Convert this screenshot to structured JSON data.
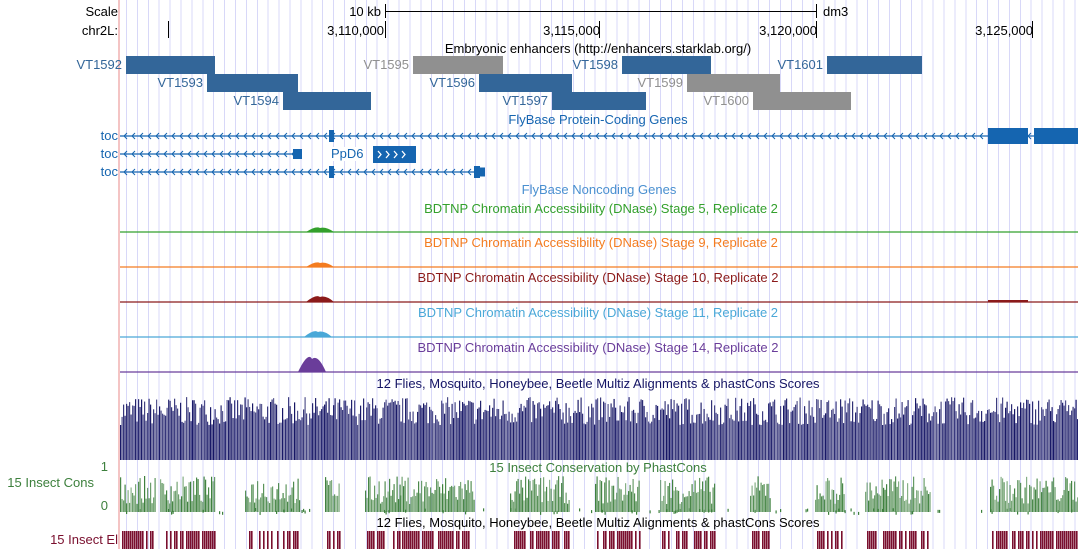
{
  "ruler": {
    "scale_label": "Scale",
    "scale_value": "10 kb",
    "assembly": "dm3",
    "chrom_label": "chr2L:",
    "ticks": [
      "3,110,000",
      "3,115,000",
      "3,120,000",
      "3,125,000"
    ]
  },
  "enhancers": {
    "title": "Embryonic enhancers (http://enhancers.starklab.org/)",
    "items": [
      {
        "label": "VT1592",
        "color": "#336699"
      },
      {
        "label": "VT1593",
        "color": "#336699"
      },
      {
        "label": "VT1594",
        "color": "#336699"
      },
      {
        "label": "VT1595",
        "color": "#909090"
      },
      {
        "label": "VT1596",
        "color": "#336699"
      },
      {
        "label": "VT1597",
        "color": "#336699"
      },
      {
        "label": "VT1598",
        "color": "#336699"
      },
      {
        "label": "VT1599",
        "color": "#909090"
      },
      {
        "label": "VT1600",
        "color": "#909090"
      },
      {
        "label": "VT1601",
        "color": "#336699"
      }
    ]
  },
  "genes": {
    "title": "FlyBase Protein-Coding Genes",
    "rows": [
      "toc",
      "toc",
      "toc"
    ],
    "extra_gene": "PpD6",
    "color": "#1565b0"
  },
  "noncoding": {
    "title": "FlyBase Noncoding Genes"
  },
  "dnase": [
    {
      "title": "BDTNP Chromatin Accessibility (DNase) Stage 5, Replicate 2",
      "color": "#33a02c"
    },
    {
      "title": "BDTNP Chromatin Accessibility (DNase) Stage 9, Replicate 2",
      "color": "#f47c20"
    },
    {
      "title": "BDTNP Chromatin Accessibility (DNase) Stage 10, Replicate 2",
      "color": "#8b1a1a"
    },
    {
      "title": "BDTNP Chromatin Accessibility (DNase) Stage 11, Replicate 2",
      "color": "#4aa8d8"
    },
    {
      "title": "BDTNP Chromatin Accessibility (DNase) Stage 14, Replicate 2",
      "color": "#6a3d9a"
    }
  ],
  "multiz": {
    "title": "12 Flies, Mosquito, Honeybee, Beetle Multiz Alignments & phastCons Scores",
    "color": "#141464"
  },
  "phastcons": {
    "title": "15 Insect Conservation by PhastCons",
    "label": "15 Insect Cons",
    "ymax": "1",
    "ymin": "0",
    "color": "#3d803d"
  },
  "elements": {
    "title": "12 Flies, Mosquito, Honeybee, Beetle Multiz Alignments & phastCons Scores",
    "label": "15 Insect El",
    "color": "#7a0f2e"
  }
}
